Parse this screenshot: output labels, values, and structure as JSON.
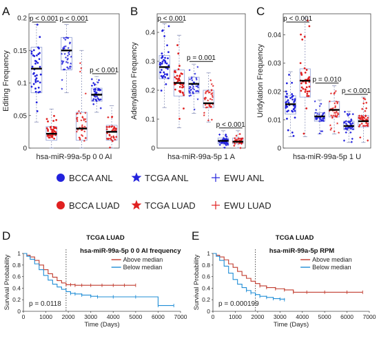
{
  "panels": {
    "A": {
      "letter": "A",
      "ylabel": "Editing Frequency",
      "xlabel": "hsa-miR-99a-5p 0 0 AI",
      "yticks": [
        "0",
        "0.05",
        "0.1",
        "0.15",
        "0.2"
      ],
      "sig": [
        "p < 0.001",
        "p < 0.001",
        "p < 0.001"
      ]
    },
    "B": {
      "letter": "B",
      "ylabel": "Adenylation Frequency",
      "xlabel": "hsa-miR-99a-5p 1 A",
      "yticks": [
        "0",
        "0.1",
        "0.2",
        "0.3",
        "0.4"
      ],
      "sig": [
        "p < 0.001",
        "p = 0.001",
        "p < 0.001"
      ]
    },
    "C": {
      "letter": "C",
      "ylabel": "Uridylation Frequency",
      "xlabel": "hsa-miR-99a-5p 1 U",
      "yticks": [
        "0",
        "0.01",
        "0.02",
        "0.03",
        "0.04"
      ],
      "sig": [
        "p < 0.001",
        "p = 0.010",
        "p < 0.001"
      ]
    },
    "D": {
      "letter": "D",
      "cohort": "TCGA LUAD",
      "feature": "hsa-miR-99a-5p 0 0 AI frequency",
      "above": "Above median",
      "below": "Below median",
      "pval": "p = 0.0118",
      "ylabel": "Survival Probability",
      "xlabel": "Time (Days)",
      "yticks": [
        "0",
        "0.2",
        "0.4",
        "0.6",
        "0.8",
        "1"
      ],
      "xticks": [
        "0",
        "1000",
        "2000",
        "3000",
        "4000",
        "5000",
        "6000",
        "7000"
      ]
    },
    "E": {
      "letter": "E",
      "cohort": "TCGA LUAD",
      "feature": "hsa-miR-99a-5p RPM",
      "above": "Above median",
      "below": "Below median",
      "pval": "p = 0.000199",
      "ylabel": "Survival Probability",
      "xlabel": "Time (Days)",
      "yticks": [
        "0",
        "0.2",
        "0.4",
        "0.6",
        "0.8",
        "1"
      ],
      "xticks": [
        "0",
        "1000",
        "2000",
        "3000",
        "4000",
        "5000",
        "6000",
        "7000"
      ]
    }
  },
  "legend": {
    "items": [
      {
        "label": "BCCA ANL",
        "marker": "dot",
        "color": "#2222dd"
      },
      {
        "label": "TCGA ANL",
        "marker": "star",
        "color": "#2222dd"
      },
      {
        "label": "EWU ANL",
        "marker": "plus",
        "color": "#2222dd"
      },
      {
        "label": "BCCA LUAD",
        "marker": "dot",
        "color": "#e02020"
      },
      {
        "label": "TCGA LUAD",
        "marker": "star",
        "color": "#e02020"
      },
      {
        "label": "EWU LUAD",
        "marker": "plus",
        "color": "#e02020"
      }
    ]
  },
  "colors": {
    "anl": "#2222dd",
    "luad": "#e02020",
    "km_above": "#c0392b",
    "km_below": "#1f8dd6",
    "box": "#9aa6d8"
  },
  "chart_data": [
    {
      "type": "box",
      "panel": "A",
      "ylim": [
        0,
        0.2
      ],
      "groups": [
        "BCCA ANL",
        "BCCA LUAD",
        "TCGA ANL",
        "TCGA LUAD",
        "EWU ANL",
        "EWU LUAD"
      ],
      "q1": [
        0.085,
        0.012,
        0.12,
        0.012,
        0.072,
        0.012
      ],
      "median": [
        0.122,
        0.022,
        0.15,
        0.03,
        0.082,
        0.025
      ],
      "q3": [
        0.155,
        0.033,
        0.17,
        0.055,
        0.092,
        0.035
      ],
      "whisker_low": [
        0.04,
        0.0,
        0.085,
        0.0,
        0.055,
        0.0
      ],
      "whisker_high": [
        0.19,
        0.06,
        0.19,
        0.15,
        0.11,
        0.065
      ],
      "comparisons": [
        [
          0,
          1,
          "p < 0.001"
        ],
        [
          2,
          3,
          "p < 0.001"
        ],
        [
          4,
          5,
          "p < 0.001"
        ]
      ]
    },
    {
      "type": "box",
      "panel": "B",
      "ylim": [
        0,
        0.45
      ],
      "groups": [
        "BCCA ANL",
        "BCCA LUAD",
        "TCGA ANL",
        "TCGA LUAD",
        "EWU ANL",
        "EWU LUAD"
      ],
      "q1": [
        0.24,
        0.18,
        0.19,
        0.14,
        0.015,
        0.015
      ],
      "median": [
        0.28,
        0.225,
        0.222,
        0.155,
        0.025,
        0.022
      ],
      "q3": [
        0.32,
        0.27,
        0.245,
        0.2,
        0.035,
        0.035
      ],
      "whisker_low": [
        0.14,
        0.07,
        0.12,
        0.09,
        0.0,
        0.0
      ],
      "whisker_high": [
        0.43,
        0.39,
        0.29,
        0.26,
        0.06,
        0.06
      ],
      "comparisons": [
        [
          0,
          1,
          "p < 0.001"
        ],
        [
          2,
          3,
          "p = 0.001"
        ],
        [
          4,
          5,
          "p < 0.001"
        ]
      ]
    },
    {
      "type": "box",
      "panel": "C",
      "ylim": [
        0,
        0.046
      ],
      "groups": [
        "BCCA ANL",
        "BCCA LUAD",
        "TCGA ANL",
        "TCGA LUAD",
        "EWU ANL",
        "EWU LUAD"
      ],
      "q1": [
        0.012,
        0.018,
        0.0095,
        0.011,
        0.0065,
        0.0075
      ],
      "median": [
        0.0155,
        0.0238,
        0.0112,
        0.0135,
        0.0078,
        0.0095
      ],
      "q3": [
        0.0185,
        0.028,
        0.0125,
        0.0165,
        0.0095,
        0.0115
      ],
      "whisker_low": [
        0.004,
        0.004,
        0.005,
        0.005,
        0.002,
        0.002
      ],
      "whisker_high": [
        0.027,
        0.046,
        0.017,
        0.022,
        0.013,
        0.018
      ],
      "comparisons": [
        [
          0,
          1,
          "p < 0.001"
        ],
        [
          2,
          3,
          "p = 0.010"
        ],
        [
          4,
          5,
          "p < 0.001"
        ]
      ]
    },
    {
      "type": "line",
      "panel": "D",
      "xlim": [
        0,
        7000
      ],
      "ylim": [
        0,
        1
      ],
      "median_line_x": 1900,
      "series": [
        {
          "name": "Above median",
          "x": [
            0,
            150,
            300,
            500,
            700,
            900,
            1100,
            1300,
            1500,
            1700,
            1900,
            2100,
            2300,
            2600,
            3000,
            3500,
            4000,
            4500,
            5000
          ],
          "y": [
            1,
            0.97,
            0.94,
            0.88,
            0.8,
            0.72,
            0.65,
            0.59,
            0.53,
            0.49,
            0.46,
            0.46,
            0.45,
            0.45,
            0.45,
            0.45,
            0.45,
            0.45,
            0.45
          ]
        },
        {
          "name": "Below median",
          "x": [
            0,
            150,
            300,
            500,
            700,
            900,
            1100,
            1300,
            1500,
            1700,
            1900,
            2100,
            2300,
            2600,
            3000,
            3300,
            4000,
            5000,
            6000,
            6700
          ],
          "y": [
            1,
            0.95,
            0.9,
            0.82,
            0.72,
            0.62,
            0.54,
            0.47,
            0.42,
            0.38,
            0.34,
            0.31,
            0.3,
            0.28,
            0.26,
            0.25,
            0.25,
            0.25,
            0.1,
            0.1
          ]
        }
      ]
    },
    {
      "type": "line",
      "panel": "E",
      "xlim": [
        0,
        7000
      ],
      "ylim": [
        0,
        1
      ],
      "median_line_x": 1900,
      "series": [
        {
          "name": "Above median",
          "x": [
            0,
            150,
            300,
            500,
            700,
            900,
            1100,
            1300,
            1500,
            1700,
            1900,
            2100,
            2400,
            2800,
            3200,
            3600,
            4200,
            5000,
            6000,
            6700
          ],
          "y": [
            1,
            0.97,
            0.94,
            0.89,
            0.82,
            0.76,
            0.69,
            0.62,
            0.57,
            0.52,
            0.48,
            0.44,
            0.41,
            0.39,
            0.37,
            0.33,
            0.33,
            0.33,
            0.33,
            0.33
          ]
        },
        {
          "name": "Below median",
          "x": [
            0,
            150,
            300,
            500,
            700,
            900,
            1100,
            1300,
            1500,
            1700,
            1900,
            2100,
            2400,
            2700,
            3000,
            3200
          ],
          "y": [
            1,
            0.95,
            0.88,
            0.78,
            0.66,
            0.55,
            0.47,
            0.41,
            0.36,
            0.32,
            0.29,
            0.26,
            0.24,
            0.22,
            0.21,
            0.2
          ]
        }
      ]
    }
  ]
}
